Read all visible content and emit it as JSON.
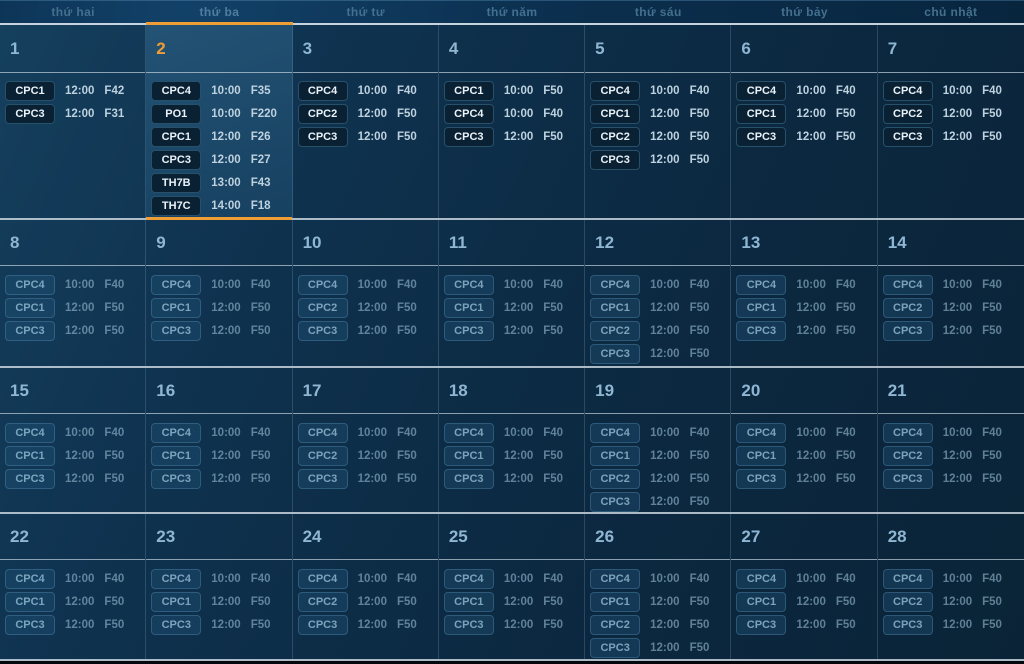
{
  "colors": {
    "accent": "#ef9d35",
    "background": "#0c2a43",
    "highlight_cell": "#1d4a68",
    "grid_line": "#cfdae2"
  },
  "header": {
    "days": [
      "thứ hai",
      "thứ ba",
      "thứ tư",
      "thứ năm",
      "thứ sáu",
      "thứ bảy",
      "chủ nhật"
    ],
    "selected_index": 1
  },
  "selected_day": "2",
  "weeks": [
    {
      "muted": false,
      "days": [
        {
          "number": "1",
          "selected": false,
          "events": [
            {
              "code": "CPC1",
              "time": "12:00",
              "f": "F42"
            },
            {
              "code": "CPC3",
              "time": "12:00",
              "f": "F31"
            }
          ]
        },
        {
          "number": "2",
          "selected": true,
          "events": [
            {
              "code": "CPC4",
              "time": "10:00",
              "f": "F35"
            },
            {
              "code": "PO1",
              "time": "10:00",
              "f": "F220"
            },
            {
              "code": "CPC1",
              "time": "12:00",
              "f": "F26"
            },
            {
              "code": "CPC3",
              "time": "12:00",
              "f": "F27"
            },
            {
              "code": "TH7B",
              "time": "13:00",
              "f": "F43"
            },
            {
              "code": "TH7C",
              "time": "14:00",
              "f": "F18"
            }
          ]
        },
        {
          "number": "3",
          "selected": false,
          "events": [
            {
              "code": "CPC4",
              "time": "10:00",
              "f": "F40"
            },
            {
              "code": "CPC2",
              "time": "12:00",
              "f": "F50"
            },
            {
              "code": "CPC3",
              "time": "12:00",
              "f": "F50"
            }
          ]
        },
        {
          "number": "4",
          "selected": false,
          "events": [
            {
              "code": "CPC1",
              "time": "10:00",
              "f": "F50"
            },
            {
              "code": "CPC4",
              "time": "10:00",
              "f": "F40"
            },
            {
              "code": "CPC3",
              "time": "12:00",
              "f": "F50"
            }
          ]
        },
        {
          "number": "5",
          "selected": false,
          "events": [
            {
              "code": "CPC4",
              "time": "10:00",
              "f": "F40"
            },
            {
              "code": "CPC1",
              "time": "12:00",
              "f": "F50"
            },
            {
              "code": "CPC2",
              "time": "12:00",
              "f": "F50"
            },
            {
              "code": "CPC3",
              "time": "12:00",
              "f": "F50"
            }
          ]
        },
        {
          "number": "6",
          "selected": false,
          "events": [
            {
              "code": "CPC4",
              "time": "10:00",
              "f": "F40"
            },
            {
              "code": "CPC1",
              "time": "12:00",
              "f": "F50"
            },
            {
              "code": "CPC3",
              "time": "12:00",
              "f": "F50"
            }
          ]
        },
        {
          "number": "7",
          "selected": false,
          "events": [
            {
              "code": "CPC4",
              "time": "10:00",
              "f": "F40"
            },
            {
              "code": "CPC2",
              "time": "12:00",
              "f": "F50"
            },
            {
              "code": "CPC3",
              "time": "12:00",
              "f": "F50"
            }
          ]
        }
      ]
    },
    {
      "muted": true,
      "days": [
        {
          "number": "8",
          "selected": false,
          "events": [
            {
              "code": "CPC4",
              "time": "10:00",
              "f": "F40"
            },
            {
              "code": "CPC1",
              "time": "12:00",
              "f": "F50"
            },
            {
              "code": "CPC3",
              "time": "12:00",
              "f": "F50"
            }
          ]
        },
        {
          "number": "9",
          "selected": false,
          "events": [
            {
              "code": "CPC4",
              "time": "10:00",
              "f": "F40"
            },
            {
              "code": "CPC1",
              "time": "12:00",
              "f": "F50"
            },
            {
              "code": "CPC3",
              "time": "12:00",
              "f": "F50"
            }
          ]
        },
        {
          "number": "10",
          "selected": false,
          "events": [
            {
              "code": "CPC4",
              "time": "10:00",
              "f": "F40"
            },
            {
              "code": "CPC2",
              "time": "12:00",
              "f": "F50"
            },
            {
              "code": "CPC3",
              "time": "12:00",
              "f": "F50"
            }
          ]
        },
        {
          "number": "11",
          "selected": false,
          "events": [
            {
              "code": "CPC4",
              "time": "10:00",
              "f": "F40"
            },
            {
              "code": "CPC1",
              "time": "12:00",
              "f": "F50"
            },
            {
              "code": "CPC3",
              "time": "12:00",
              "f": "F50"
            }
          ]
        },
        {
          "number": "12",
          "selected": false,
          "events": [
            {
              "code": "CPC4",
              "time": "10:00",
              "f": "F40"
            },
            {
              "code": "CPC1",
              "time": "12:00",
              "f": "F50"
            },
            {
              "code": "CPC2",
              "time": "12:00",
              "f": "F50"
            },
            {
              "code": "CPC3",
              "time": "12:00",
              "f": "F50"
            }
          ]
        },
        {
          "number": "13",
          "selected": false,
          "events": [
            {
              "code": "CPC4",
              "time": "10:00",
              "f": "F40"
            },
            {
              "code": "CPC1",
              "time": "12:00",
              "f": "F50"
            },
            {
              "code": "CPC3",
              "time": "12:00",
              "f": "F50"
            }
          ]
        },
        {
          "number": "14",
          "selected": false,
          "events": [
            {
              "code": "CPC4",
              "time": "10:00",
              "f": "F40"
            },
            {
              "code": "CPC2",
              "time": "12:00",
              "f": "F50"
            },
            {
              "code": "CPC3",
              "time": "12:00",
              "f": "F50"
            }
          ]
        }
      ]
    },
    {
      "muted": true,
      "days": [
        {
          "number": "15",
          "selected": false,
          "events": [
            {
              "code": "CPC4",
              "time": "10:00",
              "f": "F40"
            },
            {
              "code": "CPC1",
              "time": "12:00",
              "f": "F50"
            },
            {
              "code": "CPC3",
              "time": "12:00",
              "f": "F50"
            }
          ]
        },
        {
          "number": "16",
          "selected": false,
          "events": [
            {
              "code": "CPC4",
              "time": "10:00",
              "f": "F40"
            },
            {
              "code": "CPC1",
              "time": "12:00",
              "f": "F50"
            },
            {
              "code": "CPC3",
              "time": "12:00",
              "f": "F50"
            }
          ]
        },
        {
          "number": "17",
          "selected": false,
          "events": [
            {
              "code": "CPC4",
              "time": "10:00",
              "f": "F40"
            },
            {
              "code": "CPC2",
              "time": "12:00",
              "f": "F50"
            },
            {
              "code": "CPC3",
              "time": "12:00",
              "f": "F50"
            }
          ]
        },
        {
          "number": "18",
          "selected": false,
          "events": [
            {
              "code": "CPC4",
              "time": "10:00",
              "f": "F40"
            },
            {
              "code": "CPC1",
              "time": "12:00",
              "f": "F50"
            },
            {
              "code": "CPC3",
              "time": "12:00",
              "f": "F50"
            }
          ]
        },
        {
          "number": "19",
          "selected": false,
          "events": [
            {
              "code": "CPC4",
              "time": "10:00",
              "f": "F40"
            },
            {
              "code": "CPC1",
              "time": "12:00",
              "f": "F50"
            },
            {
              "code": "CPC2",
              "time": "12:00",
              "f": "F50"
            },
            {
              "code": "CPC3",
              "time": "12:00",
              "f": "F50"
            }
          ]
        },
        {
          "number": "20",
          "selected": false,
          "events": [
            {
              "code": "CPC4",
              "time": "10:00",
              "f": "F40"
            },
            {
              "code": "CPC1",
              "time": "12:00",
              "f": "F50"
            },
            {
              "code": "CPC3",
              "time": "12:00",
              "f": "F50"
            }
          ]
        },
        {
          "number": "21",
          "selected": false,
          "events": [
            {
              "code": "CPC4",
              "time": "10:00",
              "f": "F40"
            },
            {
              "code": "CPC2",
              "time": "12:00",
              "f": "F50"
            },
            {
              "code": "CPC3",
              "time": "12:00",
              "f": "F50"
            }
          ]
        }
      ]
    },
    {
      "muted": true,
      "days": [
        {
          "number": "22",
          "selected": false,
          "events": [
            {
              "code": "CPC4",
              "time": "10:00",
              "f": "F40"
            },
            {
              "code": "CPC1",
              "time": "12:00",
              "f": "F50"
            },
            {
              "code": "CPC3",
              "time": "12:00",
              "f": "F50"
            }
          ]
        },
        {
          "number": "23",
          "selected": false,
          "events": [
            {
              "code": "CPC4",
              "time": "10:00",
              "f": "F40"
            },
            {
              "code": "CPC1",
              "time": "12:00",
              "f": "F50"
            },
            {
              "code": "CPC3",
              "time": "12:00",
              "f": "F50"
            }
          ]
        },
        {
          "number": "24",
          "selected": false,
          "events": [
            {
              "code": "CPC4",
              "time": "10:00",
              "f": "F40"
            },
            {
              "code": "CPC2",
              "time": "12:00",
              "f": "F50"
            },
            {
              "code": "CPC3",
              "time": "12:00",
              "f": "F50"
            }
          ]
        },
        {
          "number": "25",
          "selected": false,
          "events": [
            {
              "code": "CPC4",
              "time": "10:00",
              "f": "F40"
            },
            {
              "code": "CPC1",
              "time": "12:00",
              "f": "F50"
            },
            {
              "code": "CPC3",
              "time": "12:00",
              "f": "F50"
            }
          ]
        },
        {
          "number": "26",
          "selected": false,
          "events": [
            {
              "code": "CPC4",
              "time": "10:00",
              "f": "F40"
            },
            {
              "code": "CPC1",
              "time": "12:00",
              "f": "F50"
            },
            {
              "code": "CPC2",
              "time": "12:00",
              "f": "F50"
            },
            {
              "code": "CPC3",
              "time": "12:00",
              "f": "F50"
            }
          ]
        },
        {
          "number": "27",
          "selected": false,
          "events": [
            {
              "code": "CPC4",
              "time": "10:00",
              "f": "F40"
            },
            {
              "code": "CPC1",
              "time": "12:00",
              "f": "F50"
            },
            {
              "code": "CPC3",
              "time": "12:00",
              "f": "F50"
            }
          ]
        },
        {
          "number": "28",
          "selected": false,
          "events": [
            {
              "code": "CPC4",
              "time": "10:00",
              "f": "F40"
            },
            {
              "code": "CPC2",
              "time": "12:00",
              "f": "F50"
            },
            {
              "code": "CPC3",
              "time": "12:00",
              "f": "F50"
            }
          ]
        }
      ]
    }
  ]
}
